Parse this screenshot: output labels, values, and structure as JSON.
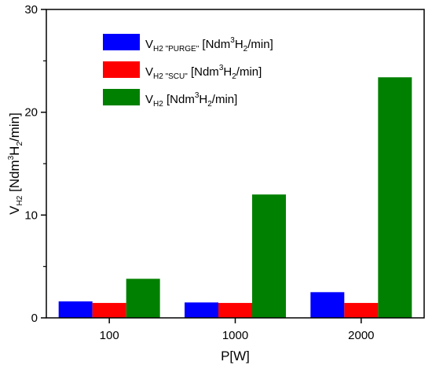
{
  "chart_data": {
    "type": "bar",
    "categories": [
      "100",
      "1000",
      "2000"
    ],
    "series": [
      {
        "name": "V_H2 \"PURGE\" [Ndm3H2/min]",
        "color": "#0000ff",
        "values": [
          1.6,
          1.5,
          2.5
        ]
      },
      {
        "name": "V_H2 \"SCU\" [Ndm3H2/min]",
        "color": "#ff0000",
        "values": [
          1.45,
          1.45,
          1.45
        ]
      },
      {
        "name": "V_H2 [Ndm3H2/min]",
        "color": "#008000",
        "values": [
          3.8,
          12.0,
          23.4
        ]
      }
    ],
    "xlabel": "P[W]",
    "ylabel": "V_H2 [Ndm3H2/min]",
    "ylim": [
      0,
      30
    ],
    "yticks": [
      "0",
      "10",
      "20",
      "30"
    ],
    "grid": false,
    "legend_position": "top-left",
    "legend": [
      {
        "main": "V",
        "sub": "H2 \"PURGE\"",
        "unit_a": " [Ndm",
        "unit_b": "3",
        "unit_c": "H",
        "unit_d": "2",
        "unit_e": "/min]"
      },
      {
        "main": "V",
        "sub": "H2 \"SCU\"",
        "unit_a": " [Ndm",
        "unit_b": "3",
        "unit_c": "H",
        "unit_d": "2",
        "unit_e": "/min]"
      },
      {
        "main": "V",
        "sub": "H2",
        "unit_a": " [Ndm",
        "unit_b": "3",
        "unit_c": "H",
        "unit_d": "2",
        "unit_e": "/min]"
      }
    ],
    "ylabel_parts": {
      "main": "V",
      "sub": "H2",
      "unit_a": " [Ndm",
      "unit_b": "3",
      "unit_c": "H",
      "unit_d": "2",
      "unit_e": "/min]"
    }
  }
}
